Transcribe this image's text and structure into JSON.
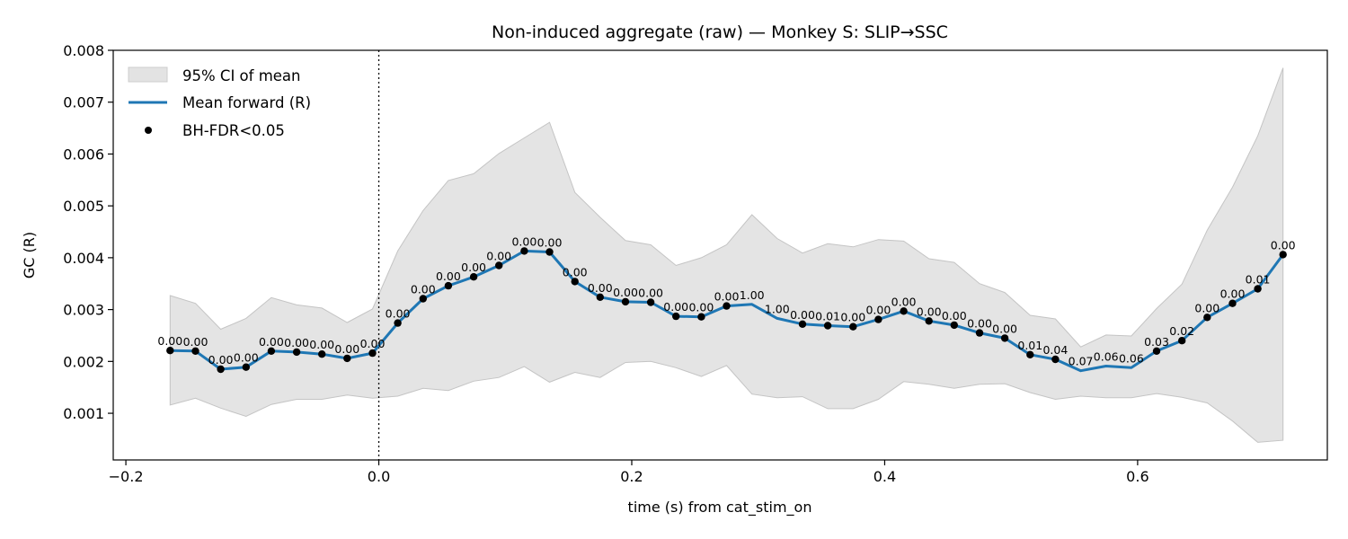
{
  "chart_data": {
    "type": "line",
    "title": "Non-induced aggregate (raw) — Monkey S: SLIP→SSC",
    "xlabel": "time (s) from cat_stim_on",
    "ylabel": "GC (R)",
    "xlim": [
      -0.21,
      0.75
    ],
    "ylim": [
      0.0001,
      0.008
    ],
    "xticks": [
      -0.2,
      0.0,
      0.2,
      0.4,
      0.6
    ],
    "xtick_labels": [
      "−0.2",
      "0.0",
      "0.2",
      "0.4",
      "0.6"
    ],
    "yticks": [
      0.001,
      0.002,
      0.003,
      0.004,
      0.005,
      0.006,
      0.007,
      0.008
    ],
    "ytick_labels": [
      "0.001",
      "0.002",
      "0.003",
      "0.004",
      "0.005",
      "0.006",
      "0.007",
      "0.008"
    ],
    "reference_line": {
      "x": 0.0,
      "style": "dotted"
    },
    "legend": {
      "placement": "top-left",
      "entries": [
        "95% CI of mean",
        "Mean forward (R)",
        "BH-FDR<0.05"
      ]
    },
    "colors": {
      "mean": "#1f77b4",
      "ci": "#d9d9d9",
      "points": "#000000"
    },
    "x": [
      -0.165,
      -0.145,
      -0.125,
      -0.105,
      -0.085,
      -0.065,
      -0.045,
      -0.025,
      -0.005,
      0.015,
      0.035,
      0.055,
      0.075,
      0.095,
      0.115,
      0.135,
      0.155,
      0.175,
      0.195,
      0.215,
      0.235,
      0.255,
      0.275,
      0.295,
      0.315,
      0.335,
      0.355,
      0.375,
      0.395,
      0.415,
      0.435,
      0.455,
      0.475,
      0.495,
      0.515,
      0.535,
      0.555,
      0.575,
      0.595,
      0.615,
      0.635,
      0.655,
      0.675,
      0.695,
      0.715
    ],
    "series": [
      {
        "name": "Mean forward (R)",
        "values": [
          0.00221,
          0.0022,
          0.00185,
          0.00189,
          0.0022,
          0.00218,
          0.00214,
          0.00206,
          0.00216,
          0.00274,
          0.00321,
          0.00346,
          0.00363,
          0.00385,
          0.00413,
          0.00411,
          0.00354,
          0.00324,
          0.00315,
          0.00314,
          0.00287,
          0.00286,
          0.00307,
          0.0031,
          0.00283,
          0.00272,
          0.00269,
          0.00267,
          0.00281,
          0.00297,
          0.00278,
          0.0027,
          0.00255,
          0.00245,
          0.00213,
          0.00204,
          0.00182,
          0.00191,
          0.00188,
          0.0022,
          0.0024,
          0.00285,
          0.00312,
          0.0034,
          0.00406
        ]
      },
      {
        "name": "95% CI of mean",
        "lower": [
          0.00116,
          0.00129,
          0.0011,
          0.00094,
          0.00117,
          0.00127,
          0.00127,
          0.00135,
          0.00129,
          0.00133,
          0.00148,
          0.00144,
          0.00162,
          0.00169,
          0.0019,
          0.0016,
          0.00179,
          0.00169,
          0.00198,
          0.002,
          0.00188,
          0.00171,
          0.00192,
          0.00137,
          0.0013,
          0.00132,
          0.00109,
          0.00109,
          0.00127,
          0.00161,
          0.00156,
          0.00148,
          0.00156,
          0.00157,
          0.0014,
          0.00127,
          0.00133,
          0.0013,
          0.0013,
          0.00138,
          0.00131,
          0.0012,
          0.00085,
          0.00044,
          0.00048
        ],
        "upper": [
          0.00327,
          0.00312,
          0.00262,
          0.00283,
          0.00323,
          0.00309,
          0.00303,
          0.00275,
          0.00301,
          0.00413,
          0.00491,
          0.00549,
          0.00562,
          0.00601,
          0.00631,
          0.00661,
          0.00526,
          0.00478,
          0.00433,
          0.00425,
          0.00385,
          0.004,
          0.00425,
          0.00483,
          0.00437,
          0.00409,
          0.00427,
          0.00421,
          0.00435,
          0.00432,
          0.00398,
          0.00391,
          0.0035,
          0.00333,
          0.00289,
          0.00282,
          0.00228,
          0.00251,
          0.00249,
          0.00302,
          0.00349,
          0.00453,
          0.00536,
          0.00635,
          0.00766
        ]
      }
    ],
    "significant_points": {
      "name": "BH-FDR<0.05",
      "labels": [
        "0.00",
        "0.00",
        "0.00",
        "0.00",
        "0.00",
        "0.00",
        "0.00",
        "0.00",
        "0.00",
        "0.00",
        "0.00",
        "0.00",
        "0.00",
        "0.00",
        "0.00",
        "0.00",
        "0.00",
        "0.00",
        "0.00",
        "0.00",
        "0.00",
        "0.00",
        "0.00",
        "1.00",
        "1.00",
        "0.00",
        "0.01",
        "0.00",
        "0.00",
        "0.00",
        "0.00",
        "0.00",
        "0.00",
        "0.00",
        "0.01",
        "0.04",
        "0.07",
        "0.06",
        "0.06",
        "0.03",
        "0.02",
        "0.00",
        "0.00",
        "0.01",
        "0.00"
      ],
      "marked": [
        true,
        true,
        true,
        true,
        true,
        true,
        true,
        true,
        true,
        true,
        true,
        true,
        true,
        true,
        true,
        true,
        true,
        true,
        true,
        true,
        true,
        true,
        true,
        false,
        false,
        true,
        true,
        true,
        true,
        true,
        true,
        true,
        true,
        true,
        true,
        true,
        false,
        false,
        false,
        true,
        true,
        true,
        true,
        true,
        true
      ]
    }
  }
}
